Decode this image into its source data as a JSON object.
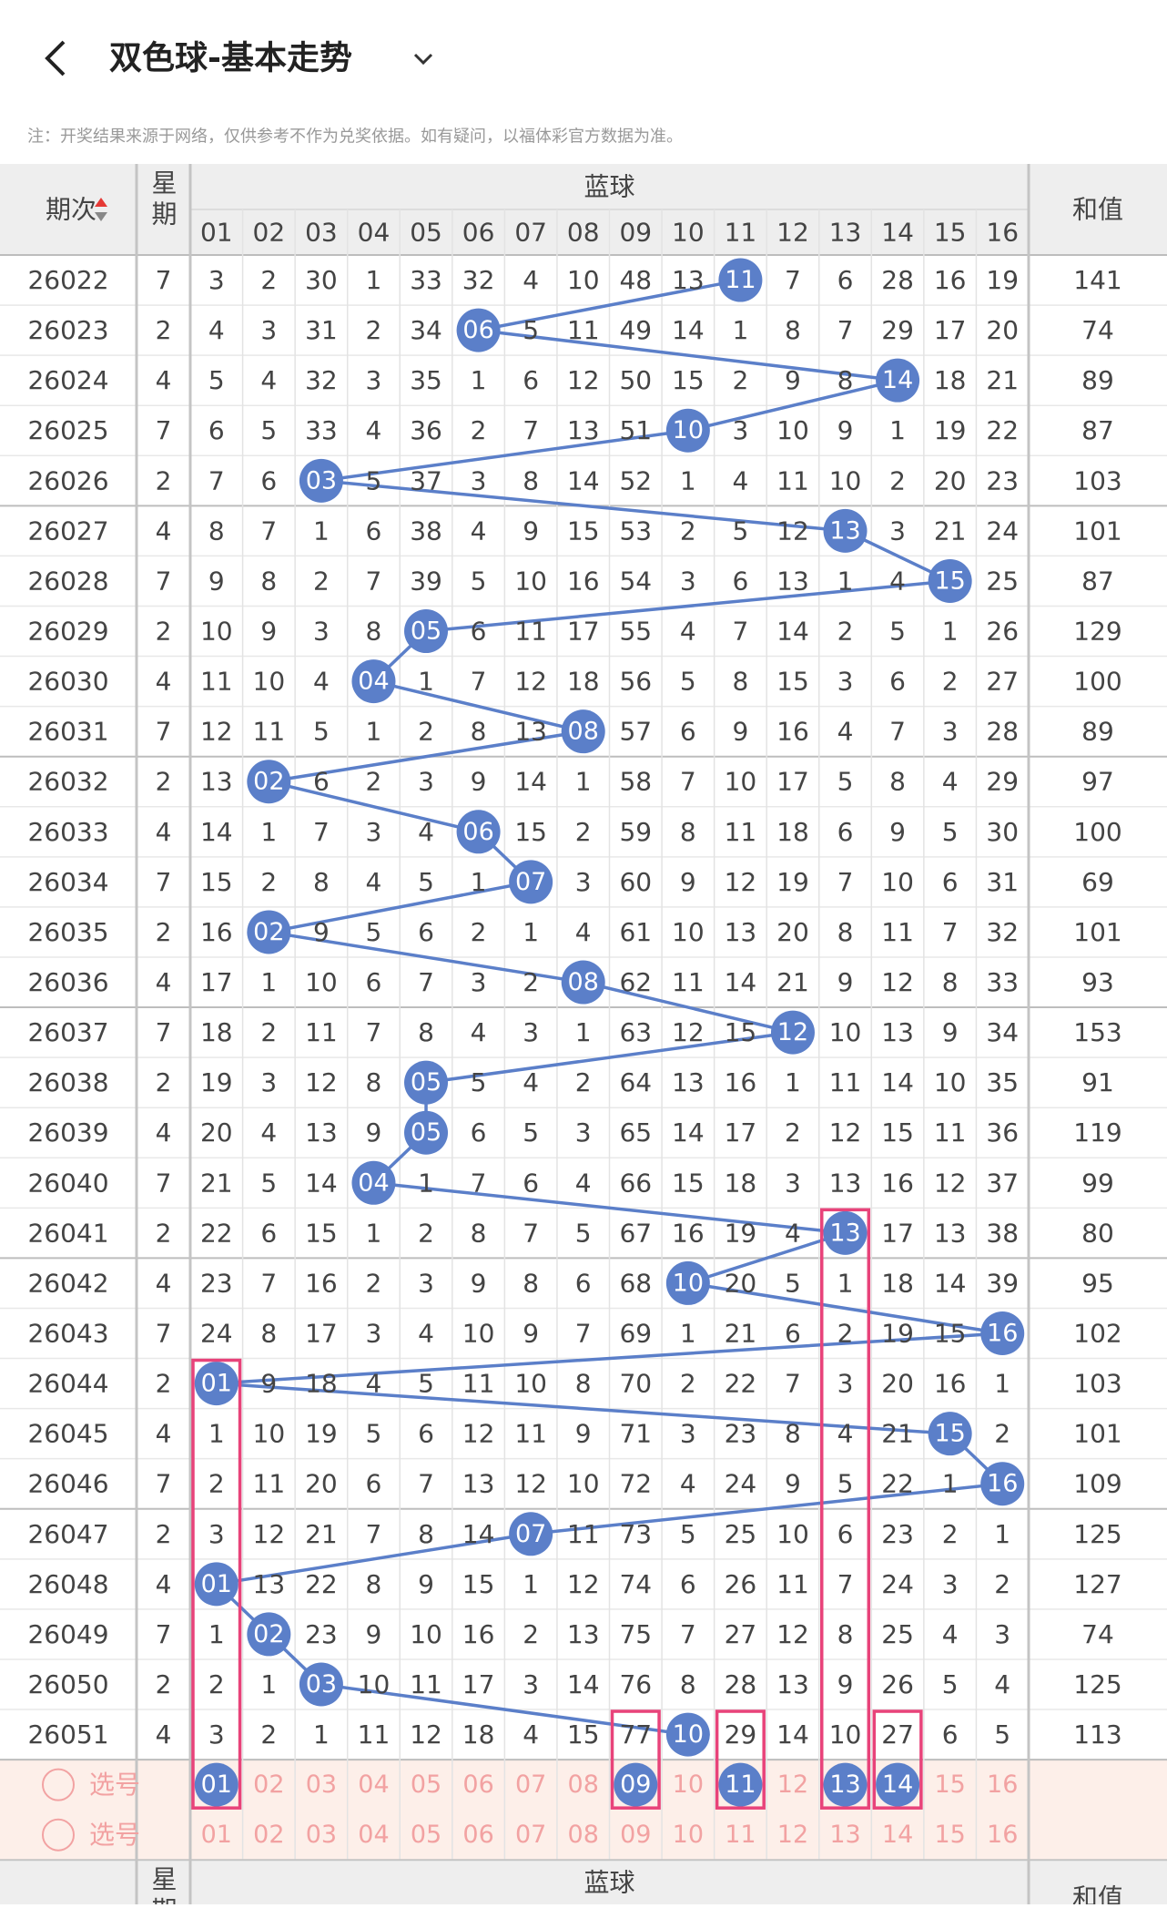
{
  "header": {
    "title": "双色球-基本走势",
    "note": "注：开奖结果来源于网络，仅供参考不作为兑奖依据。如有疑问，以福体彩官方数据为准。"
  },
  "table": {
    "period_header": "期次",
    "weekday_header": "星期",
    "blue_header": "蓝球",
    "sum_header": "和值",
    "numbers": [
      "01",
      "02",
      "03",
      "04",
      "05",
      "06",
      "07",
      "08",
      "09",
      "10",
      "11",
      "12",
      "13",
      "14",
      "15",
      "16"
    ],
    "rows": [
      {
        "period": 26022,
        "weekday": 7,
        "cells": [
          3,
          2,
          30,
          1,
          33,
          32,
          4,
          10,
          48,
          13,
          "11",
          7,
          6,
          28,
          16,
          19
        ],
        "sum": 141
      },
      {
        "period": 26023,
        "weekday": 2,
        "cells": [
          4,
          3,
          31,
          2,
          34,
          "06",
          5,
          11,
          49,
          14,
          1,
          8,
          7,
          29,
          17,
          20
        ],
        "sum": 74
      },
      {
        "period": 26024,
        "weekday": 4,
        "cells": [
          5,
          4,
          32,
          3,
          35,
          1,
          6,
          12,
          50,
          15,
          2,
          9,
          8,
          "14",
          18,
          21
        ],
        "sum": 89
      },
      {
        "period": 26025,
        "weekday": 7,
        "cells": [
          6,
          5,
          33,
          4,
          36,
          2,
          7,
          13,
          51,
          "10",
          3,
          10,
          9,
          1,
          19,
          22
        ],
        "sum": 87
      },
      {
        "period": 26026,
        "weekday": 2,
        "cells": [
          7,
          6,
          "03",
          5,
          37,
          3,
          8,
          14,
          52,
          1,
          4,
          11,
          10,
          2,
          20,
          23
        ],
        "sum": 103
      },
      {
        "period": 26027,
        "weekday": 4,
        "cells": [
          8,
          7,
          1,
          6,
          38,
          4,
          9,
          15,
          53,
          2,
          5,
          12,
          "13",
          3,
          21,
          24
        ],
        "sum": 101
      },
      {
        "period": 26028,
        "weekday": 7,
        "cells": [
          9,
          8,
          2,
          7,
          39,
          5,
          10,
          16,
          54,
          3,
          6,
          13,
          1,
          4,
          "15",
          25
        ],
        "sum": 87
      },
      {
        "period": 26029,
        "weekday": 2,
        "cells": [
          10,
          9,
          3,
          8,
          "05",
          6,
          11,
          17,
          55,
          4,
          7,
          14,
          2,
          5,
          1,
          26
        ],
        "sum": 129
      },
      {
        "period": 26030,
        "weekday": 4,
        "cells": [
          11,
          10,
          4,
          "04",
          1,
          7,
          12,
          18,
          56,
          5,
          8,
          15,
          3,
          6,
          2,
          27
        ],
        "sum": 100
      },
      {
        "period": 26031,
        "weekday": 7,
        "cells": [
          12,
          11,
          5,
          1,
          2,
          8,
          13,
          "08",
          57,
          6,
          9,
          16,
          4,
          7,
          3,
          28
        ],
        "sum": 89
      },
      {
        "period": 26032,
        "weekday": 2,
        "cells": [
          13,
          "02",
          6,
          2,
          3,
          9,
          14,
          1,
          58,
          7,
          10,
          17,
          5,
          8,
          4,
          29
        ],
        "sum": 97
      },
      {
        "period": 26033,
        "weekday": 4,
        "cells": [
          14,
          1,
          7,
          3,
          4,
          "06",
          15,
          2,
          59,
          8,
          11,
          18,
          6,
          9,
          5,
          30
        ],
        "sum": 100
      },
      {
        "period": 26034,
        "weekday": 7,
        "cells": [
          15,
          2,
          8,
          4,
          5,
          1,
          "07",
          3,
          60,
          9,
          12,
          19,
          7,
          10,
          6,
          31
        ],
        "sum": 69
      },
      {
        "period": 26035,
        "weekday": 2,
        "cells": [
          16,
          "02",
          9,
          5,
          6,
          2,
          1,
          4,
          61,
          10,
          13,
          20,
          8,
          11,
          7,
          32
        ],
        "sum": 101
      },
      {
        "period": 26036,
        "weekday": 4,
        "cells": [
          17,
          1,
          10,
          6,
          7,
          3,
          2,
          "08",
          62,
          11,
          14,
          21,
          9,
          12,
          8,
          33
        ],
        "sum": 93
      },
      {
        "period": 26037,
        "weekday": 7,
        "cells": [
          18,
          2,
          11,
          7,
          8,
          4,
          3,
          1,
          63,
          12,
          15,
          "12",
          10,
          13,
          9,
          34
        ],
        "sum": 153
      },
      {
        "period": 26038,
        "weekday": 2,
        "cells": [
          19,
          3,
          12,
          8,
          "05",
          5,
          4,
          2,
          64,
          13,
          16,
          1,
          11,
          14,
          10,
          35
        ],
        "sum": 91
      },
      {
        "period": 26039,
        "weekday": 4,
        "cells": [
          20,
          4,
          13,
          9,
          "05",
          6,
          5,
          3,
          65,
          14,
          17,
          2,
          12,
          15,
          11,
          36
        ],
        "sum": 119
      },
      {
        "period": 26040,
        "weekday": 7,
        "cells": [
          21,
          5,
          14,
          "04",
          1,
          7,
          6,
          4,
          66,
          15,
          18,
          3,
          13,
          16,
          12,
          37
        ],
        "sum": 99
      },
      {
        "period": 26041,
        "weekday": 2,
        "cells": [
          22,
          6,
          15,
          1,
          2,
          8,
          7,
          5,
          67,
          16,
          19,
          4,
          "13",
          17,
          13,
          38
        ],
        "sum": 80
      },
      {
        "period": 26042,
        "weekday": 4,
        "cells": [
          23,
          7,
          16,
          2,
          3,
          9,
          8,
          6,
          68,
          "10",
          20,
          5,
          1,
          18,
          14,
          39
        ],
        "sum": 95
      },
      {
        "period": 26043,
        "weekday": 7,
        "cells": [
          24,
          8,
          17,
          3,
          4,
          10,
          9,
          7,
          69,
          1,
          21,
          6,
          2,
          19,
          15,
          "16"
        ],
        "sum": 102
      },
      {
        "period": 26044,
        "weekday": 2,
        "cells": [
          "01",
          9,
          18,
          4,
          5,
          11,
          10,
          8,
          70,
          2,
          22,
          7,
          3,
          20,
          16,
          1
        ],
        "sum": 103
      },
      {
        "period": 26045,
        "weekday": 4,
        "cells": [
          1,
          10,
          19,
          5,
          6,
          12,
          11,
          9,
          71,
          3,
          23,
          8,
          4,
          21,
          "15",
          2
        ],
        "sum": 101
      },
      {
        "period": 26046,
        "weekday": 7,
        "cells": [
          2,
          11,
          20,
          6,
          7,
          13,
          12,
          10,
          72,
          4,
          24,
          9,
          5,
          22,
          1,
          "16"
        ],
        "sum": 109
      },
      {
        "period": 26047,
        "weekday": 2,
        "cells": [
          3,
          12,
          21,
          7,
          8,
          14,
          "07",
          11,
          73,
          5,
          25,
          10,
          6,
          23,
          2,
          1
        ],
        "sum": 125
      },
      {
        "period": 26048,
        "weekday": 4,
        "cells": [
          "01",
          13,
          22,
          8,
          9,
          15,
          1,
          12,
          74,
          6,
          26,
          11,
          7,
          24,
          3,
          2
        ],
        "sum": 127
      },
      {
        "period": 26049,
        "weekday": 7,
        "cells": [
          1,
          "02",
          23,
          9,
          10,
          16,
          2,
          13,
          75,
          7,
          27,
          12,
          8,
          25,
          4,
          3
        ],
        "sum": 74
      },
      {
        "period": 26050,
        "weekday": 2,
        "cells": [
          2,
          1,
          "03",
          10,
          11,
          17,
          3,
          14,
          76,
          8,
          28,
          13,
          9,
          26,
          5,
          4
        ],
        "sum": 125
      },
      {
        "period": 26051,
        "weekday": 4,
        "cells": [
          3,
          2,
          1,
          11,
          12,
          18,
          4,
          15,
          77,
          "10",
          29,
          14,
          10,
          27,
          6,
          5
        ],
        "sum": 113
      }
    ],
    "select_label": "选号",
    "selected": [
      true,
      false,
      false,
      false,
      false,
      false,
      false,
      false,
      true,
      false,
      true,
      false,
      true,
      true,
      false,
      false
    ]
  }
}
